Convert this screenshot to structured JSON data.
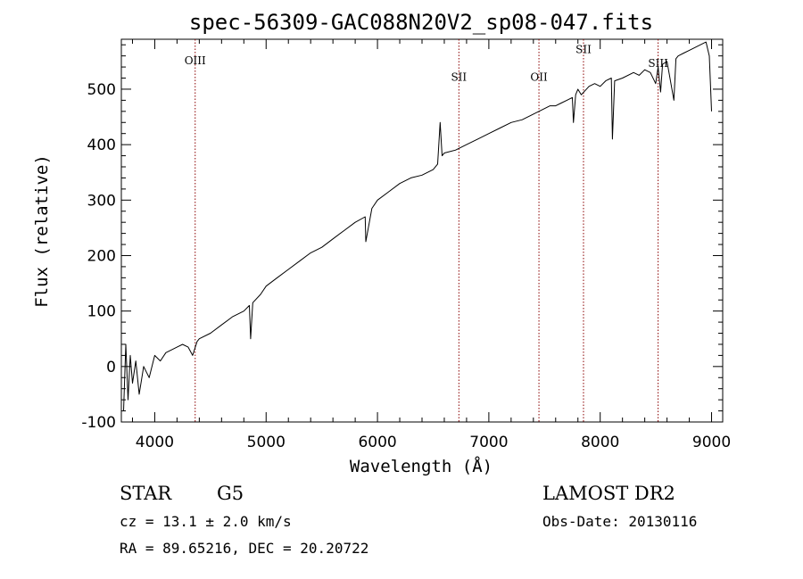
{
  "chart_data": {
    "type": "line",
    "title": "spec-56309-GAC088N20V2_sp08-047.fits",
    "xlabel": "Wavelength (Å)",
    "ylabel": "Flux (relative)",
    "xlim": [
      3700,
      9100
    ],
    "ylim": [
      -100,
      590
    ],
    "xticks": [
      4000,
      5000,
      6000,
      7000,
      8000,
      9000
    ],
    "yticks": [
      -100,
      0,
      100,
      200,
      300,
      400,
      500
    ],
    "grid": false,
    "series": [
      {
        "color": "#000000",
        "x": [
          3720,
          3740,
          3760,
          3780,
          3800,
          3830,
          3860,
          3900,
          3950,
          4000,
          4050,
          4100,
          4150,
          4200,
          4250,
          4300,
          4340,
          4380,
          4400,
          4500,
          4600,
          4700,
          4800,
          4850,
          4861,
          4880,
          4950,
          5000,
          5100,
          5200,
          5300,
          5400,
          5500,
          5600,
          5700,
          5800,
          5890,
          5895,
          5950,
          6000,
          6100,
          6200,
          6300,
          6400,
          6500,
          6540,
          6563,
          6580,
          6600,
          6700,
          6800,
          6900,
          7000,
          7100,
          7200,
          7300,
          7400,
          7450,
          7500,
          7550,
          7600,
          7650,
          7700,
          7750,
          7760,
          7780,
          7800,
          7830,
          7900,
          7950,
          8000,
          8050,
          8100,
          8110,
          8130,
          8200,
          8300,
          8350,
          8400,
          8450,
          8498,
          8520,
          8542,
          8560,
          8600,
          8662,
          8680,
          8700,
          8750,
          8800,
          8850,
          8900,
          8950,
          8980,
          9000
        ],
        "y": [
          -80,
          40,
          -60,
          20,
          -30,
          10,
          -50,
          0,
          -20,
          20,
          10,
          25,
          30,
          35,
          40,
          35,
          20,
          45,
          50,
          60,
          75,
          90,
          100,
          110,
          50,
          115,
          130,
          145,
          160,
          175,
          190,
          205,
          215,
          230,
          245,
          260,
          270,
          225,
          285,
          300,
          315,
          330,
          340,
          345,
          355,
          365,
          440,
          380,
          385,
          390,
          400,
          410,
          420,
          430,
          440,
          445,
          455,
          460,
          465,
          470,
          470,
          475,
          480,
          485,
          440,
          490,
          500,
          490,
          505,
          510,
          505,
          515,
          520,
          410,
          515,
          520,
          530,
          525,
          535,
          530,
          510,
          540,
          495,
          545,
          550,
          480,
          555,
          560,
          565,
          570,
          575,
          580,
          585,
          560,
          460
        ]
      }
    ],
    "annotations": [
      {
        "label": "OIII",
        "x": 4363,
        "label_y": 545
      },
      {
        "label": "SII",
        "x": 6731,
        "label_y": 515
      },
      {
        "label": "OII",
        "x": 7450,
        "label_y": 515
      },
      {
        "label": "SII",
        "x": 7850,
        "label_y": 565
      },
      {
        "label": "SIII",
        "x": 8520,
        "label_y": 540
      }
    ],
    "annotation_color": "#8b0000"
  },
  "info": {
    "class": "STAR",
    "subclass": "G5",
    "survey": "LAMOST DR2",
    "cz": "cz = 13.1 ± 2.0 km/s",
    "obsdate": "Obs-Date: 20130116",
    "coords": "RA =  89.65216, DEC =  20.20722"
  }
}
